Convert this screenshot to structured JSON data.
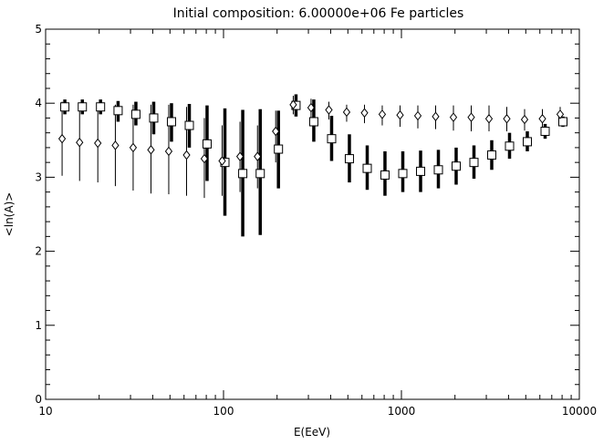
{
  "chart_data": {
    "type": "scatter",
    "title": "Initial composition: 6.00000e+06 Fe particles",
    "xlabel": "E(EeV)",
    "ylabel": "<ln(A)>",
    "xscale": "log",
    "xlim": [
      10,
      10000
    ],
    "ylim": [
      0,
      5
    ],
    "grid": false,
    "legend": "none",
    "x_tick_labels": [
      "10",
      "100",
      "1000",
      "10000"
    ],
    "y_tick_labels": [
      "0",
      "1",
      "2",
      "3",
      "4",
      "5"
    ],
    "x_ticks": [
      10,
      100,
      1000,
      10000
    ],
    "y_ticks": [
      0,
      1,
      2,
      3,
      4,
      5
    ],
    "series": [
      {
        "marker": "square",
        "x": [
          12.6,
          15.8,
          20.0,
          25.1,
          31.6,
          39.8,
          50.1,
          63.1,
          79.4,
          100,
          126,
          158,
          200,
          251,
          316,
          398,
          501,
          631,
          794,
          1000,
          1259,
          1585,
          1995,
          2512,
          3162,
          3981,
          5012,
          6310,
          7943
        ],
        "y": [
          3.95,
          3.95,
          3.95,
          3.9,
          3.85,
          3.8,
          3.75,
          3.7,
          3.45,
          3.2,
          3.05,
          3.05,
          3.38,
          3.97,
          3.75,
          3.52,
          3.25,
          3.12,
          3.03,
          3.05,
          3.08,
          3.1,
          3.15,
          3.2,
          3.3,
          3.42,
          3.48,
          3.62,
          3.75
        ],
        "err_low": [
          3.85,
          3.85,
          3.85,
          3.75,
          3.7,
          3.58,
          3.48,
          3.4,
          2.95,
          2.48,
          2.2,
          2.22,
          2.85,
          3.82,
          3.48,
          3.22,
          2.93,
          2.83,
          2.75,
          2.8,
          2.8,
          2.85,
          2.9,
          2.98,
          3.1,
          3.25,
          3.35,
          3.52,
          3.68
        ],
        "err_high": [
          4.05,
          4.05,
          4.05,
          4.03,
          4.02,
          4.02,
          4.0,
          3.99,
          3.97,
          3.93,
          3.91,
          3.92,
          3.9,
          4.12,
          4.05,
          3.83,
          3.58,
          3.43,
          3.35,
          3.35,
          3.36,
          3.37,
          3.4,
          3.43,
          3.5,
          3.6,
          3.62,
          3.72,
          3.82
        ]
      },
      {
        "marker": "diamond",
        "x": [
          12.6,
          15.8,
          20.0,
          25.1,
          31.6,
          39.8,
          50.1,
          63.1,
          79.4,
          100,
          126,
          158,
          200,
          251,
          316,
          398,
          501,
          631,
          794,
          1000,
          1259,
          1585,
          1995,
          2512,
          3162,
          3981,
          5012,
          6310,
          7943
        ],
        "y": [
          3.52,
          3.47,
          3.46,
          3.43,
          3.4,
          3.37,
          3.35,
          3.3,
          3.25,
          3.22,
          3.28,
          3.28,
          3.62,
          3.98,
          3.94,
          3.91,
          3.88,
          3.87,
          3.85,
          3.84,
          3.83,
          3.82,
          3.81,
          3.81,
          3.79,
          3.79,
          3.78,
          3.79,
          3.85
        ],
        "err_low": [
          3.02,
          2.95,
          2.93,
          2.88,
          2.82,
          2.78,
          2.77,
          2.75,
          2.72,
          2.75,
          2.8,
          2.85,
          3.2,
          3.85,
          3.8,
          3.78,
          3.75,
          3.73,
          3.7,
          3.68,
          3.66,
          3.65,
          3.63,
          3.62,
          3.62,
          3.62,
          3.63,
          3.65,
          3.7
        ],
        "err_high": [
          4.02,
          4.0,
          3.99,
          3.98,
          3.98,
          3.98,
          3.98,
          3.95,
          3.8,
          3.7,
          3.75,
          3.7,
          3.9,
          4.1,
          4.06,
          4.02,
          3.98,
          3.98,
          3.97,
          3.97,
          3.97,
          3.97,
          3.97,
          3.97,
          3.97,
          3.95,
          3.92,
          3.92,
          3.95
        ]
      }
    ]
  }
}
